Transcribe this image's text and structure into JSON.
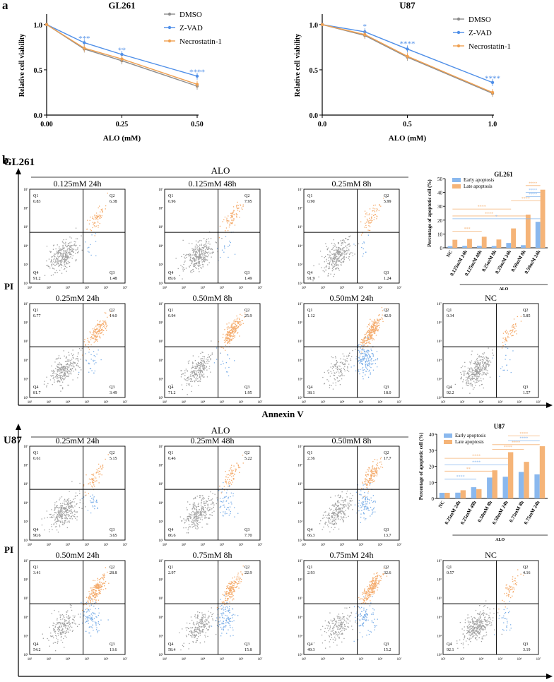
{
  "panel_labels": {
    "a": "a",
    "b": "b"
  },
  "colors": {
    "dmso": "#8c8c8c",
    "zvad": "#4f8fe8",
    "nec": "#f0a050",
    "early": "#8ab8ee",
    "late": "#f5b478",
    "scatter_gray": "#a0a0a0",
    "scatter_orange": "#f4aa6a",
    "scatter_blue": "#7aaee8"
  },
  "chart_data": [
    {
      "id": "line_gl261",
      "type": "line",
      "title": "GL261",
      "xlabel": "ALO (mM)",
      "ylabel": "Relative cell viability",
      "xlim": [
        0,
        0.5
      ],
      "ylim": [
        0,
        1.1
      ],
      "xticks": [
        "0.00",
        "0.25",
        "0.50"
      ],
      "xtick_values": [
        0,
        0.25,
        0.5
      ],
      "yticks": [
        "0.0",
        "0.5",
        "1.0"
      ],
      "ytick_values": [
        0,
        0.5,
        1.0
      ],
      "legend": [
        "DMSO",
        "Z-VAD",
        "Necrostatin-1"
      ],
      "series": [
        {
          "name": "DMSO",
          "color": "#8c8c8c",
          "x": [
            0,
            0.125,
            0.25,
            0.5
          ],
          "y": [
            1.0,
            0.73,
            0.6,
            0.32
          ]
        },
        {
          "name": "Z-VAD",
          "color": "#4f8fe8",
          "x": [
            0,
            0.125,
            0.25,
            0.5
          ],
          "y": [
            1.0,
            0.8,
            0.67,
            0.43
          ]
        },
        {
          "name": "Necrostatin-1",
          "color": "#f0a050",
          "x": [
            0,
            0.125,
            0.25,
            0.5
          ],
          "y": [
            1.0,
            0.74,
            0.62,
            0.34
          ]
        }
      ],
      "annotations": [
        {
          "text": "***",
          "x": 0.125,
          "y": 0.82
        },
        {
          "text": "**",
          "x": 0.25,
          "y": 0.69
        },
        {
          "text": "****",
          "x": 0.5,
          "y": 0.45
        }
      ]
    },
    {
      "id": "line_u87",
      "type": "line",
      "title": "U87",
      "xlabel": "ALO (mM)",
      "ylabel": "Relative cell viability",
      "xlim": [
        0,
        1.0
      ],
      "ylim": [
        0,
        1.1
      ],
      "xticks": [
        "0.0",
        "0.5",
        "1.0"
      ],
      "xtick_values": [
        0,
        0.5,
        1.0
      ],
      "yticks": [
        "0.0",
        "0.5",
        "1.0"
      ],
      "ytick_values": [
        0,
        0.5,
        1.0
      ],
      "legend": [
        "DMSO",
        "Z-VAD",
        "Necrostatin-1"
      ],
      "series": [
        {
          "name": "DMSO",
          "color": "#8c8c8c",
          "x": [
            0,
            0.25,
            0.5,
            1.0
          ],
          "y": [
            1.0,
            0.88,
            0.64,
            0.24
          ]
        },
        {
          "name": "Z-VAD",
          "color": "#4f8fe8",
          "x": [
            0,
            0.25,
            0.5,
            1.0
          ],
          "y": [
            1.0,
            0.92,
            0.73,
            0.36
          ]
        },
        {
          "name": "Necrostatin-1",
          "color": "#f0a050",
          "x": [
            0,
            0.25,
            0.5,
            1.0
          ],
          "y": [
            1.0,
            0.89,
            0.65,
            0.25
          ]
        }
      ],
      "annotations": [
        {
          "text": "*",
          "x": 0.25,
          "y": 0.95
        },
        {
          "text": "****",
          "x": 0.5,
          "y": 0.76
        },
        {
          "text": "****",
          "x": 1.0,
          "y": 0.38
        }
      ]
    },
    {
      "id": "flow_gl261",
      "type": "scatter",
      "title": "GL261",
      "group_label": "ALO",
      "xlabel": "Annexin V",
      "ylabel": "PI",
      "tick_labels": [
        "10²",
        "10³",
        "10⁴",
        "10⁵",
        "10⁶",
        "10⁷"
      ],
      "plots": [
        {
          "label": "0.125mM 24h",
          "q1": "0.83",
          "q2": "6.38",
          "q3": "1.48",
          "q4": "91.2",
          "q1_label": "Q1",
          "q2_label": "Q2",
          "q3_label": "Q3",
          "q4_label": "Q4"
        },
        {
          "label": "0.125mM 48h",
          "q1": "0.96",
          "q2": "7.95",
          "q3": "1.49",
          "q4": "89.6",
          "q1_label": "Q1",
          "q2_label": "Q2",
          "q3_label": "Q3",
          "q4_label": "Q4"
        },
        {
          "label": "0.25mM 8h",
          "q1": "0.90",
          "q2": "5.99",
          "q3": "1.24",
          "q4": "91.9",
          "q1_label": "Q1",
          "q2_label": "Q2",
          "q3_label": "Q3",
          "q4_label": "Q4"
        },
        {
          "label": "0.25mM 24h",
          "q1": "0.77",
          "q2": "14.0",
          "q3": "3.49",
          "q4": "81.7",
          "q1_label": "Q1",
          "q2_label": "Q2",
          "q3_label": "Q3",
          "q4_label": "Q4"
        },
        {
          "label": "0.50mM 8h",
          "q1": "0.94",
          "q2": "25.9",
          "q3": "1.95",
          "q4": "71.2",
          "q1_label": "Q1",
          "q2_label": "Q2",
          "q3_label": "Q3",
          "q4_label": "Q4"
        },
        {
          "label": "0.50mM 24h",
          "q1": "1.12",
          "q2": "42.9",
          "q3": "18.0",
          "q4": "38.1",
          "q1_label": "Q1",
          "q2_label": "Q2",
          "q3_label": "Q3",
          "q4_label": "Q4"
        },
        {
          "label": "NC",
          "q1": "0.34",
          "q2": "5.85",
          "q3": "1.57",
          "q4": "92.2",
          "q1_label": "Q1",
          "q2_label": "Q2",
          "q3_label": "Q3",
          "q4_label": "Q4"
        }
      ]
    },
    {
      "id": "bar_gl261",
      "type": "bar",
      "title": "GL261",
      "ylabel": "Percentage of apoptotic cell (%)",
      "xgroup_label": "ALO",
      "ylim": [
        0,
        50
      ],
      "yticks": [
        "0",
        "10",
        "20",
        "30",
        "40",
        "50"
      ],
      "ytick_values": [
        0,
        10,
        20,
        30,
        40,
        50
      ],
      "categories": [
        "NC",
        "0.125mM 24h",
        "0.125mM 48h",
        "0.25mM 8h",
        "0.25mM 24h",
        "0.50mM 8h",
        "0.50mM 24h"
      ],
      "series": [
        {
          "name": "Early apoptosis",
          "color": "#8ab8ee",
          "values": [
            1.2,
            1.4,
            1.4,
            1.3,
            3.5,
            1.9,
            18.8
          ]
        },
        {
          "name": "Late apoptosis",
          "color": "#f5b478",
          "values": [
            5.8,
            6.4,
            8.0,
            6.0,
            14.0,
            24.0,
            42.0
          ]
        }
      ],
      "sig": [
        {
          "text": "****",
          "i1": 5,
          "i2": 6,
          "y": 45,
          "series": 1
        },
        {
          "text": "****",
          "i1": 5,
          "i2": 6,
          "y": 40,
          "series": 0
        },
        {
          "text": "****",
          "i1": 5,
          "i2": 6,
          "y": 37,
          "series": 0
        },
        {
          "text": "****",
          "i1": 4,
          "i2": 6,
          "y": 34,
          "series": 1
        },
        {
          "text": "****",
          "i1": 0,
          "i2": 4,
          "y": 28,
          "series": 1
        },
        {
          "text": "****",
          "i1": 0,
          "i2": 5,
          "y": 23,
          "series": 1
        },
        {
          "text": "*",
          "i1": 0,
          "i2": 6,
          "y": 21,
          "series": 0
        },
        {
          "text": "***",
          "i1": 0,
          "i2": 2,
          "y": 12,
          "series": 1
        }
      ]
    },
    {
      "id": "flow_u87",
      "type": "scatter",
      "title": "U87",
      "group_label": "ALO",
      "xlabel": "Annexin V",
      "ylabel": "PI",
      "tick_labels": [
        "10²",
        "10³",
        "10⁴",
        "10⁵",
        "10⁶",
        "10⁷"
      ],
      "plots": [
        {
          "label": "0.25mM 24h",
          "q1": "0.61",
          "q2": "5.15",
          "q3": "3.65",
          "q4": "90.6",
          "q1_label": "Q1",
          "q2_label": "Q2",
          "q3_label": "Q3",
          "q4_label": "Q4"
        },
        {
          "label": "0.25mM 48h",
          "q1": "0.46",
          "q2": "5.22",
          "q3": "7.70",
          "q4": "86.6",
          "q1_label": "Q1",
          "q2_label": "Q2",
          "q3_label": "Q3",
          "q4_label": "Q4"
        },
        {
          "label": "0.50mM 8h",
          "q1": "2.36",
          "q2": "17.7",
          "q3": "13.7",
          "q4": "66.3",
          "q1_label": "Q1",
          "q2_label": "Q2",
          "q3_label": "Q3",
          "q4_label": "Q4"
        },
        {
          "label": "0.50mM 24h",
          "q1": "3.41",
          "q2": "28.8",
          "q3": "13.6",
          "q4": "54.2",
          "q1_label": "Q1",
          "q2_label": "Q2",
          "q3_label": "Q3",
          "q4_label": "Q4"
        },
        {
          "label": "0.75mM 8h",
          "q1": "2.97",
          "q2": "22.9",
          "q3": "15.8",
          "q4": "58.4",
          "q1_label": "Q1",
          "q2_label": "Q2",
          "q3_label": "Q3",
          "q4_label": "Q4"
        },
        {
          "label": "0.75mM 24h",
          "q1": "2.93",
          "q2": "32.6",
          "q3": "15.2",
          "q4": "49.3",
          "q1_label": "Q1",
          "q2_label": "Q2",
          "q3_label": "Q3",
          "q4_label": "Q4"
        },
        {
          "label": "NC",
          "q1": "0.57",
          "q2": "4.16",
          "q3": "3.19",
          "q4": "92.1",
          "q1_label": "Q1",
          "q2_label": "Q2",
          "q3_label": "Q3",
          "q4_label": "Q4"
        }
      ]
    },
    {
      "id": "bar_u87",
      "type": "bar",
      "title": "U87",
      "ylabel": "Percentage of apoptotic cell (%)",
      "xgroup_label": "ALO",
      "ylim": [
        0,
        40
      ],
      "yticks": [
        "0",
        "10",
        "20",
        "30",
        "40"
      ],
      "ytick_values": [
        0,
        10,
        20,
        30,
        40
      ],
      "categories": [
        "NC",
        "0.25mM 24h",
        "0.25mM 48h",
        "0.50mM 8h",
        "0.50mM 24h",
        "0.75mM 8h",
        "0.75mM 24h"
      ],
      "series": [
        {
          "name": "Early apoptosis",
          "color": "#8ab8ee",
          "values": [
            3.5,
            3.6,
            7.0,
            13.0,
            13.5,
            16.5,
            15.0
          ]
        },
        {
          "name": "Late apoptosis",
          "color": "#f5b478",
          "values": [
            3.5,
            5.1,
            5.8,
            17.5,
            28.8,
            22.8,
            32.5
          ]
        }
      ],
      "sig": [
        {
          "text": "****",
          "i1": 4,
          "i2": 6,
          "y": 39,
          "series": 1
        },
        {
          "text": "****",
          "i1": 4,
          "i2": 6,
          "y": 36,
          "series": 0
        },
        {
          "text": "****",
          "i1": 3,
          "i2": 6,
          "y": 33.5,
          "series": 1
        },
        {
          "text": "****",
          "i1": 3,
          "i2": 5,
          "y": 30.5,
          "series": 1
        },
        {
          "text": "****",
          "i1": 0,
          "i2": 4,
          "y": 25,
          "series": 1
        },
        {
          "text": "****",
          "i1": 0,
          "i2": 4,
          "y": 21,
          "series": 0
        },
        {
          "text": "**",
          "i1": 0,
          "i2": 3,
          "y": 17,
          "series": 1
        },
        {
          "text": "****",
          "i1": 0,
          "i2": 2,
          "y": 12,
          "series": 0
        }
      ]
    }
  ]
}
